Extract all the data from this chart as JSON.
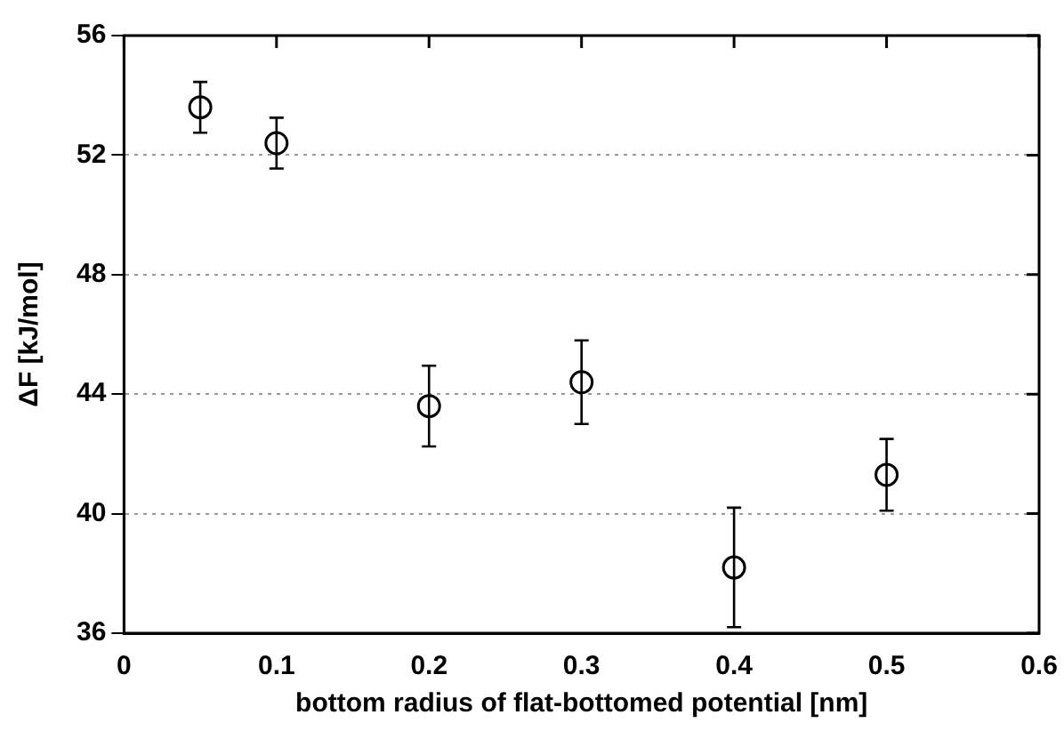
{
  "chart_data": {
    "type": "scatter",
    "xlabel": "bottom radius of flat-bottomed potential [nm]",
    "ylabel": "ΔF [kJ/mol]",
    "x": [
      0.05,
      0.1,
      0.2,
      0.3,
      0.4,
      0.5
    ],
    "values": [
      53.6,
      52.4,
      43.6,
      44.4,
      38.2,
      41.3
    ],
    "errors": [
      0.85,
      0.85,
      1.35,
      1.4,
      2.0,
      1.2
    ],
    "color": "#000000",
    "marker": "circle",
    "xlim": [
      0,
      0.6
    ],
    "xticks": [
      0,
      0.1,
      0.2,
      0.3,
      0.4,
      0.5,
      0.6
    ],
    "ylim": [
      36,
      56
    ],
    "yticks": [
      36,
      40,
      44,
      48,
      52,
      56
    ],
    "grid": "y"
  }
}
